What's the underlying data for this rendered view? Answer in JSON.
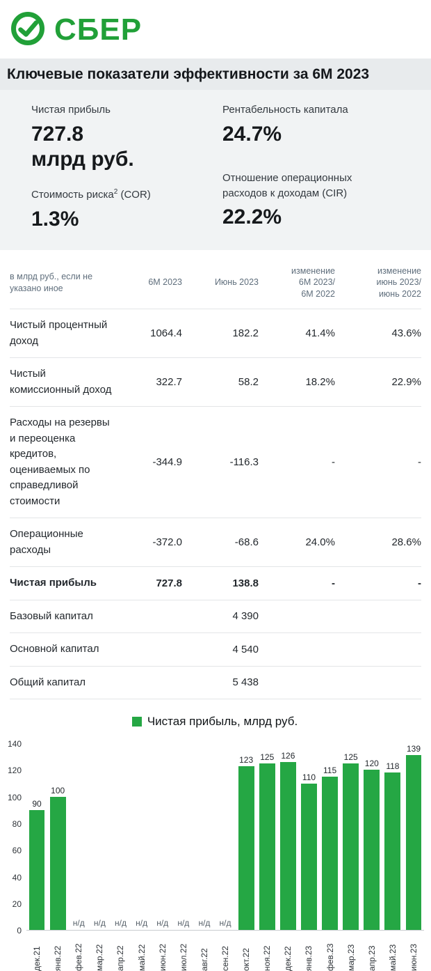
{
  "brand": {
    "name": "СБЕР",
    "color": "#21A038"
  },
  "header": {
    "title": "Ключевые показатели эффективности за 6М 2023"
  },
  "kpis": {
    "net_profit": {
      "label": "Чистая прибыль",
      "value": "727.8",
      "unit": "млрд руб."
    },
    "roe": {
      "label": "Рентабельность капитала",
      "value": "24.7%"
    },
    "cor": {
      "label_prefix": "Стоимость риска",
      "label_sup": "2",
      "label_suffix": " (COR)",
      "value": "1.3%"
    },
    "cir": {
      "label": "Отношение операционных\nрасходов к доходам (CIR)",
      "value": "22.2%"
    }
  },
  "table": {
    "headers": [
      "в млрд руб., если не\nуказано иное",
      "6М 2023",
      "Июнь 2023",
      "изменение\n6М 2023/\n6М 2022",
      "изменение\nиюнь 2023/\nиюнь 2022"
    ],
    "rows": [
      {
        "label": "Чистый процентный доход",
        "values": [
          "1064.4",
          "182.2",
          "41.4%",
          "43.6%"
        ],
        "bold": false
      },
      {
        "label": "Чистый комиссионный доход",
        "values": [
          "322.7",
          "58.2",
          "18.2%",
          "22.9%"
        ],
        "bold": false
      },
      {
        "label": "Расходы на резервы и переоценка кредитов, оцениваемых по справедливой стоимости",
        "values": [
          "-344.9",
          "-116.3",
          "-",
          "-"
        ],
        "bold": false
      },
      {
        "label": "Операционные расходы",
        "values": [
          "-372.0",
          "-68.6",
          "24.0%",
          "28.6%"
        ],
        "bold": false
      },
      {
        "label": "Чистая прибыль",
        "values": [
          "727.8",
          "138.8",
          "-",
          "-"
        ],
        "bold": true
      },
      {
        "label": "Базовый капитал",
        "values": [
          "",
          "4 390",
          "",
          ""
        ],
        "bold": false
      },
      {
        "label": "Основной капитал",
        "values": [
          "",
          "4 540",
          "",
          ""
        ],
        "bold": false
      },
      {
        "label": "Общий капитал",
        "values": [
          "",
          "5 438",
          "",
          ""
        ],
        "bold": false
      }
    ]
  },
  "chart_data": {
    "type": "bar",
    "title": "Чистая прибыль, млрд руб.",
    "categories": [
      "дек.21",
      "янв.22",
      "фев.22",
      "мар.22",
      "апр.22",
      "май.22",
      "июн.22",
      "июл.22",
      "авг.22",
      "сен.22",
      "окт.22",
      "ноя.22",
      "дек.22",
      "янв.23",
      "фев.23",
      "мар.23",
      "апр.23",
      "май.23",
      "июн.23"
    ],
    "values": [
      90,
      100,
      null,
      null,
      null,
      null,
      null,
      null,
      null,
      null,
      123,
      125,
      126,
      110,
      115,
      125,
      120,
      118,
      139
    ],
    "na_label": "н/д",
    "ylim": [
      0,
      140
    ],
    "ytick_step": 20,
    "bar_color": "#25A744",
    "legend_position": "top",
    "grid": false
  }
}
